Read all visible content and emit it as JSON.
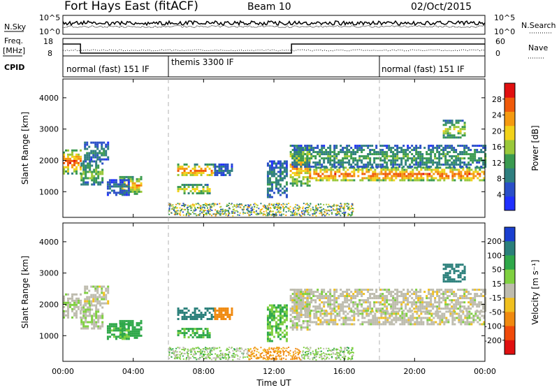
{
  "header": {
    "station": "Fort Hays East (fitACF)",
    "beam": "Beam 10",
    "date": "02/Oct/2015"
  },
  "colors": {
    "axis": "#000000",
    "trace": "#000000",
    "dashed_marker": "#aaaaaa",
    "background": "#ffffff"
  },
  "top_panels": {
    "nsky": {
      "left_label": "N.Sky",
      "left_ticks": [
        "10^5",
        "10^0"
      ],
      "right_ticks": [
        "10^5",
        "10^0"
      ],
      "right_label": "N.Search"
    },
    "freq": {
      "left_label_1": "Freq.",
      "left_label_2": "[MHz]",
      "left_ticks": [
        "18",
        "8"
      ],
      "right_ticks": [
        "60",
        "0"
      ],
      "right_label": "Nave"
    },
    "cpid": {
      "left_label": "CPID",
      "segments": [
        {
          "label": "normal (fast) 151 IF",
          "start_h": 0,
          "end_h": 6
        },
        {
          "label": "themis 3300 IF",
          "start_h": 6,
          "end_h": 18
        },
        {
          "label": "normal (fast) 151 IF",
          "start_h": 18,
          "end_h": 24
        }
      ]
    }
  },
  "chart_data": [
    {
      "type": "heatmap",
      "name": "power",
      "title": "",
      "ylabel": "Slant Range [km]",
      "xlabel": "",
      "xlim": [
        0,
        24
      ],
      "ylim": [
        180,
        4600
      ],
      "yticks": [
        1000,
        2000,
        3000,
        4000
      ],
      "colorbar": {
        "label": "Power [dB]",
        "range": [
          0,
          32
        ],
        "ticks": [
          "4",
          "8",
          "12",
          "16",
          "20",
          "24",
          "28"
        ],
        "tick_values": [
          4,
          8,
          12,
          16,
          20,
          24,
          28
        ],
        "colors": [
          "#2030ff",
          "#2a4fc8",
          "#2f7f80",
          "#3a9a50",
          "#9ac83a",
          "#f2d21a",
          "#f59a10",
          "#f05a0a",
          "#e11010"
        ]
      }
    },
    {
      "type": "heatmap",
      "name": "velocity",
      "title": "",
      "ylabel": "Slant Range [km]",
      "xlabel": "Time UT",
      "xlim": [
        0,
        24
      ],
      "ylim": [
        180,
        4600
      ],
      "yticks": [
        1000,
        2000,
        3000,
        4000
      ],
      "xticks": [
        "00:00",
        "04:00",
        "08:00",
        "12:00",
        "16:00",
        "20:00",
        "00:00"
      ],
      "xtick_values": [
        0,
        4,
        8,
        12,
        16,
        20,
        24
      ],
      "colorbar": {
        "label": "Velocity [m s⁻¹]",
        "ticks": [
          "200",
          "100",
          "50",
          "15",
          "-15",
          "-50",
          "-100",
          "-200"
        ],
        "tick_values": [
          200,
          100,
          50,
          15,
          -15,
          -50,
          -100,
          -200
        ],
        "colors": [
          "#1a3fd0",
          "#2a7f7a",
          "#2fa84a",
          "#7fd040",
          "#bebcae",
          "#f0c020",
          "#f08a10",
          "#f04a0a",
          "#e01010"
        ]
      }
    }
  ],
  "echo_bands": [
    {
      "t0": 0.0,
      "t1": 1.0,
      "r0": 1600,
      "r1": 2350,
      "power": 25,
      "vel": 5,
      "rng_trend": 0
    },
    {
      "t0": 1.0,
      "t1": 2.2,
      "r0": 1200,
      "r1": 2000,
      "power": 14,
      "vel": 8,
      "rng_trend": 0
    },
    {
      "t0": 1.2,
      "t1": 2.6,
      "r0": 2000,
      "r1": 2600,
      "power": 10,
      "vel": 0,
      "rng_trend": 0
    },
    {
      "t0": 3.2,
      "t1": 4.4,
      "r0": 950,
      "r1": 1500,
      "power": 22,
      "vel": 70,
      "rng_trend": 0
    },
    {
      "t0": 2.5,
      "t1": 3.8,
      "r0": 900,
      "r1": 1400,
      "power": 8,
      "vel": 60,
      "rng_trend": 0
    },
    {
      "t0": 6.5,
      "t1": 8.6,
      "r0": 1500,
      "r1": 1900,
      "power": 24,
      "vel": 180,
      "rng_trend": 0
    },
    {
      "t0": 6.5,
      "t1": 8.4,
      "r0": 950,
      "r1": 1250,
      "power": 18,
      "vel": 60,
      "rng_trend": 0
    },
    {
      "t0": 8.6,
      "t1": 9.6,
      "r0": 1500,
      "r1": 1900,
      "power": 8,
      "vel": -80,
      "rng_trend": 0
    },
    {
      "t0": 11.6,
      "t1": 12.7,
      "r0": 800,
      "r1": 2000,
      "power": 10,
      "vel": 50,
      "rng_trend": 0
    },
    {
      "t0": 12.9,
      "t1": 14.0,
      "r0": 1200,
      "r1": 2500,
      "power": 22,
      "vel": 0,
      "rng_trend": 0
    },
    {
      "t0": 14.0,
      "t1": 24.0,
      "r0": 1350,
      "r1": 1800,
      "power": 25,
      "vel": 0,
      "rng_trend": 0
    },
    {
      "t0": 13.0,
      "t1": 24.0,
      "r0": 1800,
      "r1": 2500,
      "power": 12,
      "vel": 0,
      "rng_trend": 0
    },
    {
      "t0": 21.6,
      "t1": 22.8,
      "r0": 2700,
      "r1": 3300,
      "power": 16,
      "vel": 150,
      "rng_trend": 0
    }
  ]
}
